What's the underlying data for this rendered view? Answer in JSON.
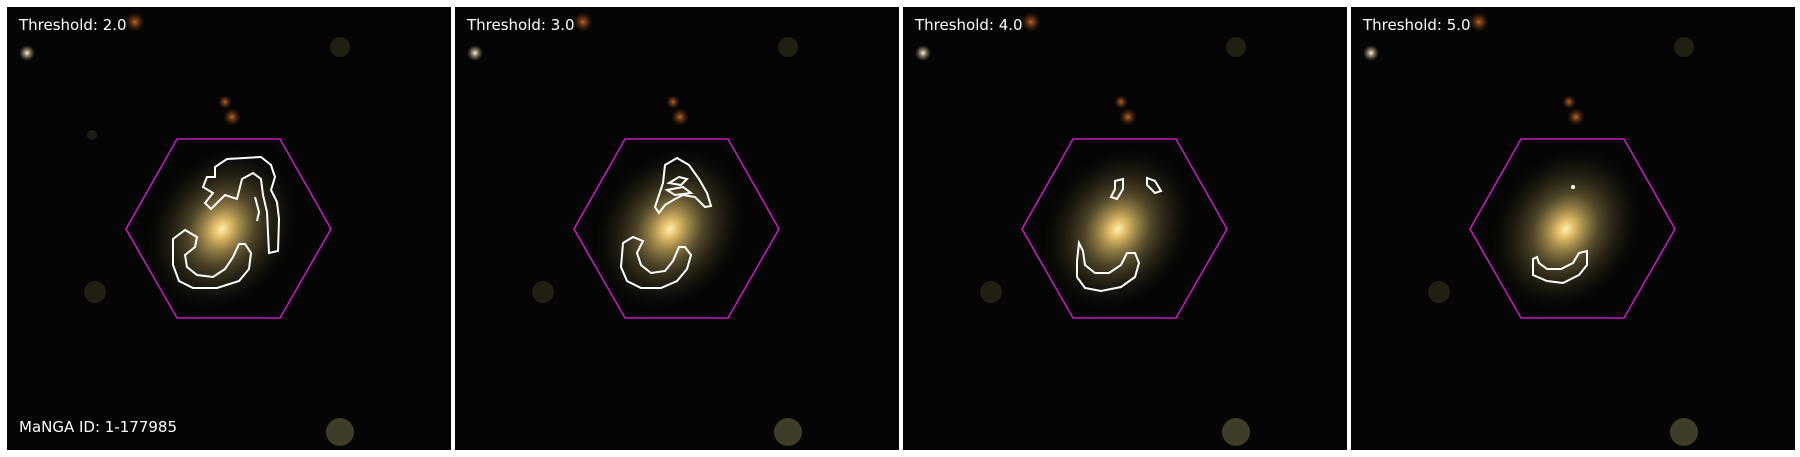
{
  "panels": [
    {
      "threshold_label": "Threshold: 2.0"
    },
    {
      "threshold_label": "Threshold: 3.0"
    },
    {
      "threshold_label": "Threshold: 4.0"
    },
    {
      "threshold_label": "Threshold: 5.0"
    }
  ],
  "manga_id_label": "MaNGA ID: 1-177985",
  "colors": {
    "hexagon": "#c21bc2",
    "contour": "#ffffff",
    "galaxy_core": "#ffe890",
    "background": "#050505"
  }
}
